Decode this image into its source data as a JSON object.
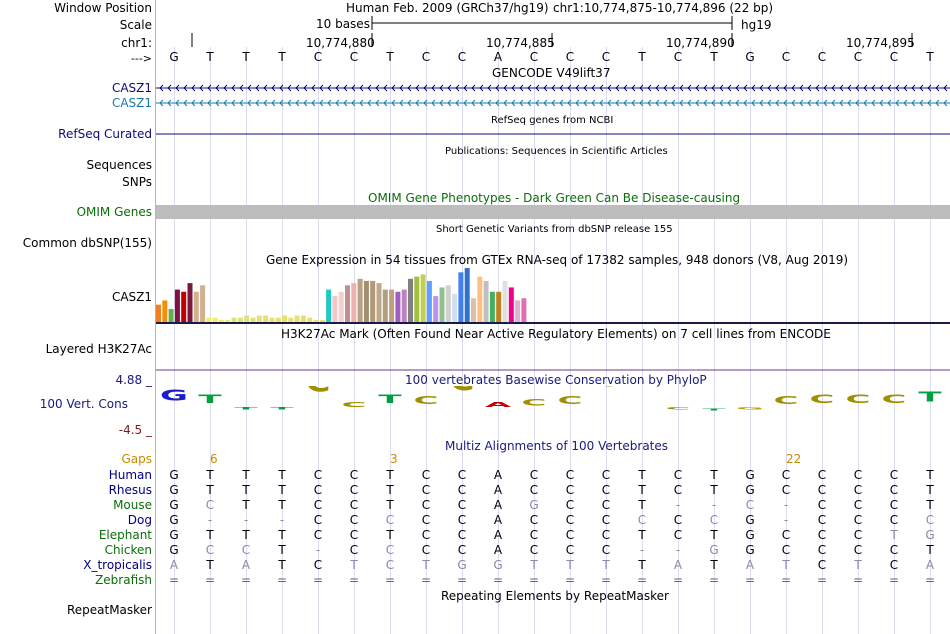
{
  "labels": {
    "window_position": "Window Position",
    "scale": "Scale",
    "chr": "chr1:",
    "arrow": "--->",
    "casz1_a": "CASZ1",
    "casz1_b": "CASZ1",
    "refseq": "RefSeq Curated",
    "sequences": "Sequences",
    "snps": "SNPs",
    "omim": "OMIM Genes",
    "dbsnp": "Common dbSNP(155)",
    "gtex": "CASZ1",
    "h3k27ac": "Layered H3K27Ac",
    "cons_max": "4.88 _",
    "cons": "100 Vert. Cons",
    "cons_min": "-4.5 _",
    "gaps": "Gaps",
    "repeatmasker": "RepeatMasker"
  },
  "header": {
    "assembly": "Human Feb. 2009 (GRCh37/hg19)",
    "position": "chr1:10,774,875-10,774,896 (22 bp)",
    "scale_text": "10 bases",
    "scale_db": "hg19",
    "coords": [
      "10,774,880",
      "10,774,885",
      "10,774,890",
      "10,774,895"
    ]
  },
  "ref_seq": [
    "G",
    "T",
    "T",
    "T",
    "C",
    "C",
    "T",
    "C",
    "C",
    "A",
    "C",
    "C",
    "C",
    "T",
    "C",
    "T",
    "G",
    "C",
    "C",
    "C",
    "C",
    "T"
  ],
  "titles": {
    "gencode": "GENCODE V49lift37",
    "refseq": "RefSeq genes from NCBI",
    "publications": "Publications: Sequences in Scientific Articles",
    "omim": "OMIM Gene Phenotypes - Dark Green Can Be Disease-causing",
    "dbsnp": "Short Genetic Variants from dbSNP release 155",
    "gtex": "Gene Expression in 54 tissues from GTEx RNA-seq of 17382 samples, 948 donors (V8, Aug 2019)",
    "h3k27ac": "H3K27Ac Mark (Often Found Near Active Regulatory Elements) on 7 cell lines from ENCODE",
    "phylop": "100 vertebrates Basewise Conservation by PhyloP",
    "multiz": "Multiz Alignments of 100 Vertebrates",
    "repeatmasker": "Repeating Elements by RepeatMasker"
  },
  "gaps": [
    {
      "col": 1,
      "label": "6"
    },
    {
      "col": 6,
      "label": "3"
    },
    {
      "col": 17,
      "label": "22"
    }
  ],
  "species": [
    {
      "name": "Human",
      "color": "#000080",
      "seq": [
        "G",
        "T",
        "T",
        "T",
        "C",
        "C",
        "T",
        "C",
        "C",
        "A",
        "C",
        "C",
        "C",
        "T",
        "C",
        "T",
        "G",
        "C",
        "C",
        "C",
        "C",
        "T"
      ]
    },
    {
      "name": "Rhesus",
      "color": "#000080",
      "seq": [
        "G",
        "T",
        "T",
        "T",
        "C",
        "C",
        "T",
        "C",
        "C",
        "A",
        "C",
        "C",
        "C",
        "T",
        "C",
        "T",
        "G",
        "C",
        "C",
        "C",
        "C",
        "T"
      ]
    },
    {
      "name": "Mouse",
      "color": "#0a6e0a",
      "seq": [
        "G",
        "C",
        "T",
        "T",
        "C",
        "C",
        "T",
        "C",
        "C",
        "A",
        "G",
        "C",
        "C",
        "T",
        "-",
        "-",
        "C",
        "-",
        "C",
        "C",
        "C",
        "T"
      ]
    },
    {
      "name": "Dog",
      "color": "#000080",
      "seq": [
        "G",
        "-",
        "-",
        "-",
        "C",
        "C",
        "C",
        "C",
        "C",
        "A",
        "C",
        "C",
        "C",
        "C",
        "C",
        "C",
        "G",
        "-",
        "C",
        "C",
        "C",
        "C"
      ]
    },
    {
      "name": "Elephant",
      "color": "#0a6e0a",
      "seq": [
        "G",
        "T",
        "T",
        "T",
        "C",
        "C",
        "T",
        "C",
        "C",
        "A",
        "C",
        "C",
        "C",
        "T",
        "C",
        "T",
        "G",
        "C",
        "C",
        "C",
        "T",
        "G"
      ]
    },
    {
      "name": "Chicken",
      "color": "#0a6e0a",
      "seq": [
        "G",
        "C",
        "C",
        "T",
        "-",
        "C",
        "C",
        "C",
        "C",
        "A",
        "C",
        "C",
        "C",
        "-",
        "-",
        "G",
        "G",
        "C",
        "C",
        "C",
        "C",
        "T"
      ]
    },
    {
      "name": "X_tropicalis",
      "color": "#000080",
      "seq": [
        "A",
        "T",
        "A",
        "T",
        "C",
        "T",
        "C",
        "T",
        "G",
        "G",
        "T",
        "T",
        "T",
        "T",
        "A",
        "T",
        "A",
        "T",
        "C",
        "T",
        "C",
        "A"
      ]
    },
    {
      "name": "Zebrafish",
      "color": "#0a6e0a",
      "seq": [
        "=",
        "=",
        "=",
        "=",
        "=",
        "=",
        "=",
        "=",
        "=",
        "=",
        "=",
        "=",
        "=",
        "=",
        "=",
        "=",
        "=",
        "=",
        "=",
        "=",
        "=",
        "="
      ]
    }
  ],
  "chart_data": {
    "type": "bar",
    "title": "Gene Expression in 54 tissues from GTEx RNA-seq of 17382 samples, 948 donors (V8, Aug 2019)",
    "values": [
      8,
      10,
      6,
      15,
      14,
      18,
      14,
      17,
      2,
      2,
      1,
      1,
      2,
      2,
      3,
      2,
      3,
      3,
      2,
      2,
      3,
      2,
      3,
      3,
      2,
      1,
      1,
      15,
      12,
      14,
      17,
      18,
      20,
      19,
      19,
      18,
      15,
      15,
      14,
      15,
      20,
      21,
      22,
      19,
      12,
      16,
      17,
      13,
      23,
      25,
      11,
      21,
      19,
      14,
      14,
      19,
      16,
      10,
      11
    ],
    "colors": [
      "#f08020",
      "#f09010",
      "#62b04a",
      "#801040",
      "#c00000",
      "#7a1a3a",
      "#d8b090",
      "#d0b090",
      "#f0f060",
      "#f0f060",
      "#f0f060",
      "#f0f060",
      "#e0e080",
      "#e0e080",
      "#e0e080",
      "#e0e080",
      "#e8e070",
      "#e8e070",
      "#e8e070",
      "#e8e070",
      "#e8e070",
      "#e8e070",
      "#e8e070",
      "#e8e070",
      "#e8e070",
      "#e8e070",
      "#e8e070",
      "#20c8c8",
      "#f0c8c8",
      "#f0d0d0",
      "#c09090",
      "#f0b0b0",
      "#b8a080",
      "#a09070",
      "#b09878",
      "#c0a888",
      "#b0a080",
      "#c0a080",
      "#a060c0",
      "#c080c0",
      "#808080",
      "#a0c040",
      "#c0d050",
      "#60a0ff",
      "#c090f0",
      "#90c090",
      "#d0d0d0",
      "#d0e0f0",
      "#4080f0",
      "#3070d0",
      "#e0c0a0",
      "#ffc080",
      "#c0c0c0",
      "#40b060",
      "#c08020",
      "#e0e0e0",
      "#f00090",
      "#e0b0d0",
      "#e070b0"
    ],
    "ylim": [
      0,
      25
    ]
  }
}
